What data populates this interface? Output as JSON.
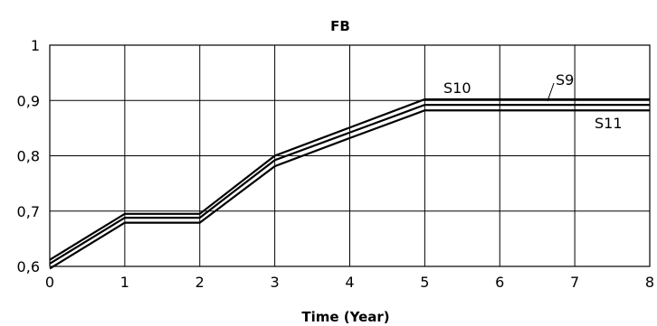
{
  "chart_data": {
    "type": "line",
    "title": "FB",
    "xlabel": "Time (Year)",
    "ylabel": "",
    "xlim": [
      0,
      8
    ],
    "ylim": [
      0.6,
      1.0
    ],
    "x_ticks": [
      "0",
      "1",
      "2",
      "3",
      "4",
      "5",
      "6",
      "7",
      "8"
    ],
    "y_ticks": [
      "0,6",
      "0,7",
      "0,8",
      "0,9",
      "1"
    ],
    "grid": true,
    "x": [
      0,
      1,
      2,
      3,
      4,
      5,
      6,
      7,
      8
    ],
    "series": [
      {
        "name": "S10",
        "values": [
          0.612,
          0.695,
          0.695,
          0.8,
          0.851,
          0.902,
          0.902,
          0.902,
          0.902
        ]
      },
      {
        "name": "S9",
        "values": [
          0.605,
          0.688,
          0.688,
          0.792,
          0.842,
          0.892,
          0.892,
          0.892,
          0.892
        ]
      },
      {
        "name": "S11",
        "values": [
          0.596,
          0.679,
          0.679,
          0.781,
          0.832,
          0.882,
          0.882,
          0.882,
          0.882
        ]
      }
    ],
    "annotations": [
      {
        "text": "S10",
        "series": "S10"
      },
      {
        "text": "S9",
        "series": "S9"
      },
      {
        "text": "S11",
        "series": "S11"
      }
    ]
  }
}
